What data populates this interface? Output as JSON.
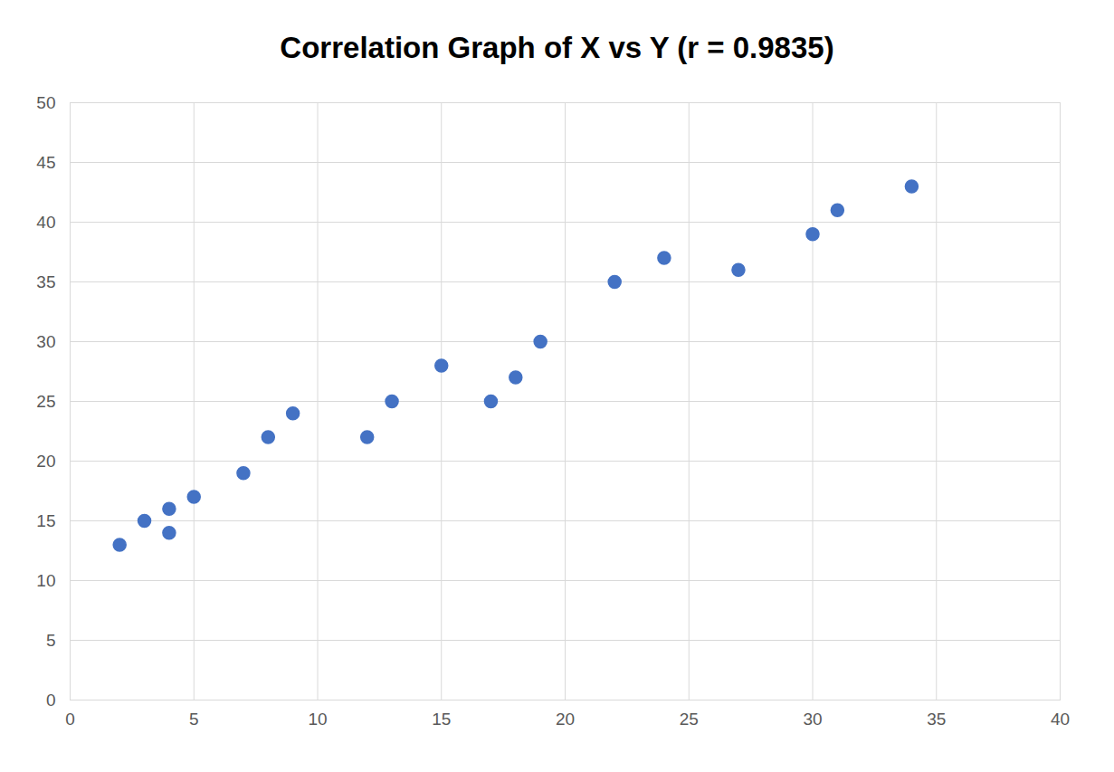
{
  "chart_data": {
    "type": "scatter",
    "title": "Correlation Graph of X vs Y (r = 0.9835)",
    "x": [
      2,
      3,
      4,
      4,
      5,
      7,
      8,
      9,
      12,
      13,
      15,
      17,
      18,
      19,
      22,
      24,
      27,
      30,
      31,
      34
    ],
    "values": [
      13,
      15,
      16,
      14,
      17,
      19,
      22,
      24,
      22,
      25,
      28,
      25,
      27,
      30,
      35,
      37,
      36,
      39,
      41,
      43
    ],
    "color": "#4472c4",
    "marker": "circle",
    "xlim": [
      0,
      40
    ],
    "xticks": [
      0,
      5,
      10,
      15,
      20,
      25,
      30,
      35,
      40
    ],
    "ylim": [
      0,
      50
    ],
    "yticks": [
      0,
      5,
      10,
      15,
      20,
      25,
      30,
      35,
      40,
      45,
      50
    ],
    "grid": true
  }
}
